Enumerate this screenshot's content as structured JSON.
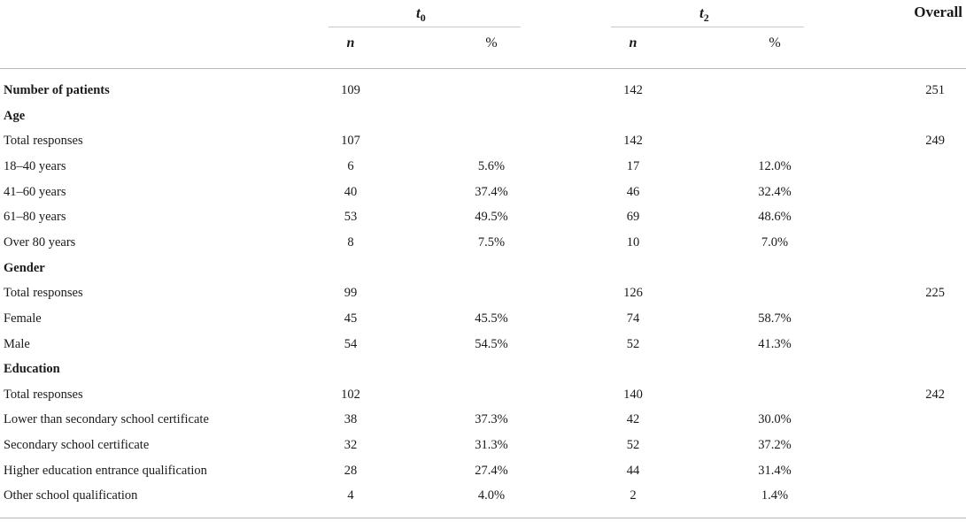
{
  "table": {
    "groups": [
      {
        "main": "t",
        "sub": "0"
      },
      {
        "main": "t",
        "sub": "2"
      }
    ],
    "overall_label": "Overall",
    "subheaders": [
      "n",
      "%",
      "n",
      "%"
    ],
    "rows": [
      {
        "label": "Number of patients",
        "n0": "109",
        "p0": "",
        "n2": "142",
        "p2": "",
        "overall": "251",
        "style": "bold"
      },
      {
        "label": "Age",
        "n0": "",
        "p0": "",
        "n2": "",
        "p2": "",
        "overall": "",
        "style": "section"
      },
      {
        "label": "Total responses",
        "n0": "107",
        "p0": "",
        "n2": "142",
        "p2": "",
        "overall": "249",
        "style": "normal"
      },
      {
        "label": "18–40 years",
        "n0": "6",
        "p0": "5.6%",
        "n2": "17",
        "p2": "12.0%",
        "overall": "",
        "style": "normal"
      },
      {
        "label": "41–60 years",
        "n0": "40",
        "p0": "37.4%",
        "n2": "46",
        "p2": "32.4%",
        "overall": "",
        "style": "normal"
      },
      {
        "label": "61–80 years",
        "n0": "53",
        "p0": "49.5%",
        "n2": "69",
        "p2": "48.6%",
        "overall": "",
        "style": "normal"
      },
      {
        "label": "Over 80 years",
        "n0": "8",
        "p0": "7.5%",
        "n2": "10",
        "p2": "7.0%",
        "overall": "",
        "style": "normal"
      },
      {
        "label": "Gender",
        "n0": "",
        "p0": "",
        "n2": "",
        "p2": "",
        "overall": "",
        "style": "section"
      },
      {
        "label": "Total responses",
        "n0": "99",
        "p0": "",
        "n2": "126",
        "p2": "",
        "overall": "225",
        "style": "normal"
      },
      {
        "label": "Female",
        "n0": "45",
        "p0": "45.5%",
        "n2": "74",
        "p2": "58.7%",
        "overall": "",
        "style": "normal"
      },
      {
        "label": "Male",
        "n0": "54",
        "p0": "54.5%",
        "n2": "52",
        "p2": "41.3%",
        "overall": "",
        "style": "normal"
      },
      {
        "label": "Education",
        "n0": "",
        "p0": "",
        "n2": "",
        "p2": "",
        "overall": "",
        "style": "section"
      },
      {
        "label": "Total responses",
        "n0": "102",
        "p0": "",
        "n2": "140",
        "p2": "",
        "overall": "242",
        "style": "normal"
      },
      {
        "label": "Lower than secondary school certificate",
        "n0": "38",
        "p0": "37.3%",
        "n2": "42",
        "p2": "30.0%",
        "overall": "",
        "style": "normal"
      },
      {
        "label": "Secondary school certificate",
        "n0": "32",
        "p0": "31.3%",
        "n2": "52",
        "p2": "37.2%",
        "overall": "",
        "style": "normal"
      },
      {
        "label": "Higher education entrance qualification",
        "n0": "28",
        "p0": "27.4%",
        "n2": "44",
        "p2": "31.4%",
        "overall": "",
        "style": "normal"
      },
      {
        "label": "Other school qualification",
        "n0": "4",
        "p0": "4.0%",
        "n2": "2",
        "p2": "1.4%",
        "overall": "",
        "style": "normal"
      }
    ]
  }
}
